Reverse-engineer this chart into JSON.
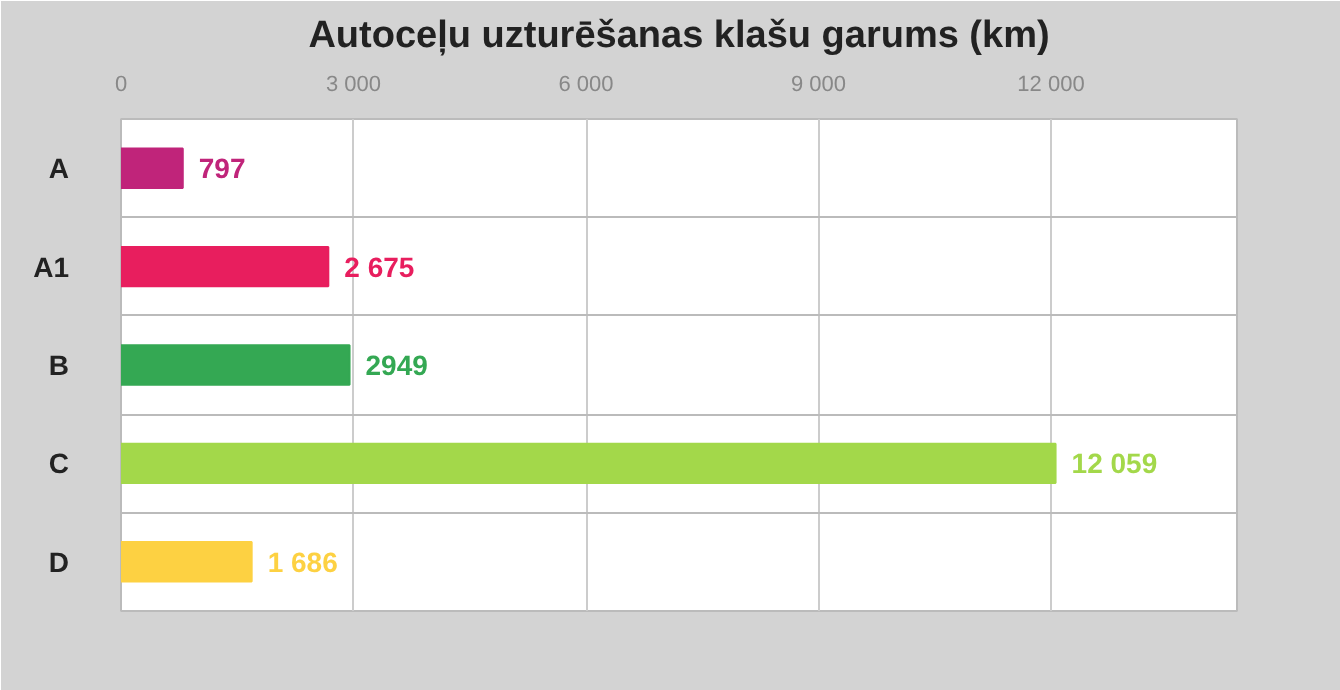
{
  "chart_data": {
    "type": "bar",
    "orientation": "horizontal",
    "title": "Autoceļu uzturēšanas klašu garums (km)",
    "categories": [
      "A",
      "A1",
      "B",
      "C",
      "D"
    ],
    "values": [
      797,
      2675,
      2949,
      12059,
      1686
    ],
    "colors": [
      "#c0247a",
      "#e81e5e",
      "#34a853",
      "#a3d84a",
      "#fdd142"
    ],
    "value_labels": [
      "797",
      "2 675",
      "2949",
      "12 059",
      "1 686"
    ],
    "xlim": [
      0,
      14400
    ],
    "xticks": [
      0,
      {
        "value": 3000,
        "label": "3 000"
      },
      {
        "value": 6000,
        "label": "6 000"
      },
      {
        "value": 9000,
        "label": "9 000"
      },
      {
        "value": 12000,
        "label": "12 000"
      }
    ],
    "grid": true
  }
}
